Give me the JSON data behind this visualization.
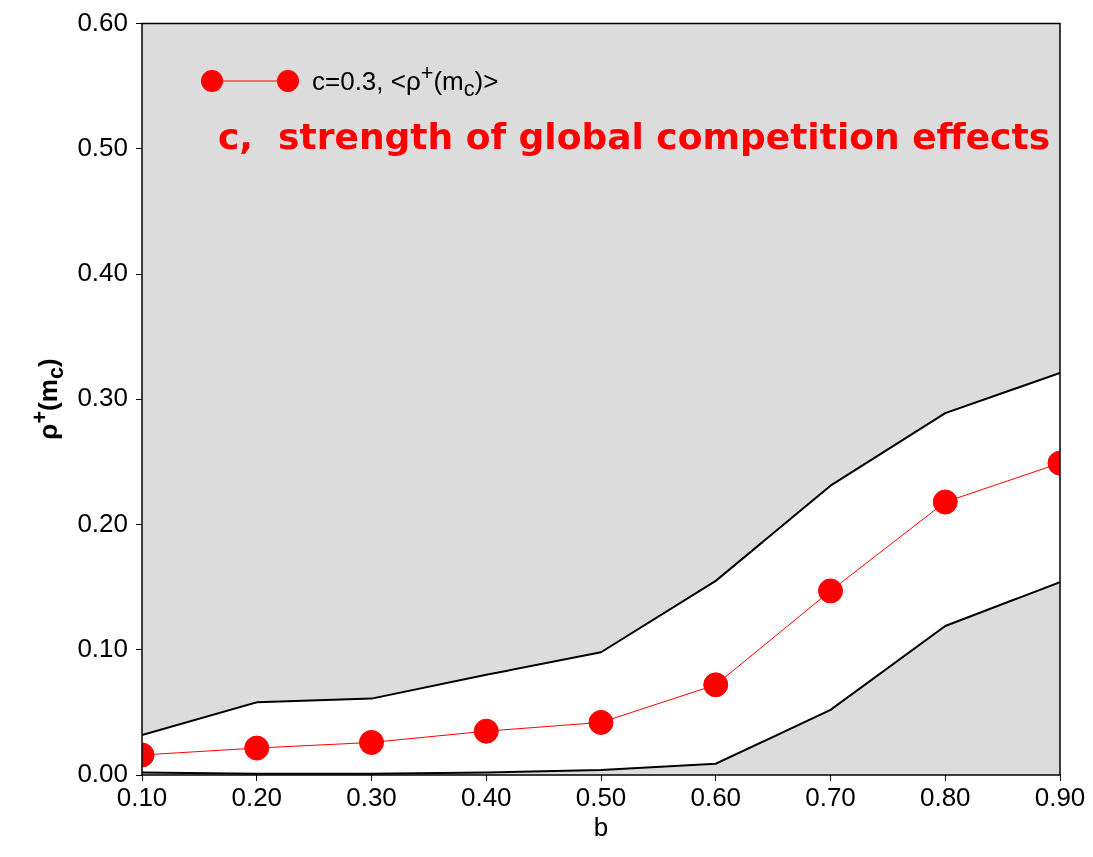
{
  "chart_data": {
    "type": "line",
    "xlabel": "b",
    "ylabel": "ρ$^{+}$(m$_{c}$)",
    "annotations": [
      "c,  strength of global competition effects"
    ],
    "x": [
      0.1,
      0.2,
      0.3,
      0.4,
      0.5,
      0.6,
      0.7,
      0.8,
      0.9
    ],
    "series": [
      {
        "type": "area",
        "color": "#ffffff",
        "values": [
          0.032,
          0.058,
          0.061,
          0.08,
          0.098,
          0.155,
          0.231,
          0.289,
          0.321
        ]
      },
      {
        "type": "area",
        "color": "#dcdcdc",
        "values": [
          0.002,
          0.001,
          0.001,
          0.002,
          0.004,
          0.009,
          0.052,
          0.119,
          0.154
        ]
      },
      {
        "name": "c=0.3, <ρ$^{+}$(m$_{c}$)>",
        "color": "#ff0000",
        "marker": "circle",
        "values": [
          0.016,
          0.0215,
          0.026,
          0.035,
          0.042,
          0.072,
          0.147,
          0.218,
          0.249
        ]
      }
    ],
    "xlim": [
      0.1,
      0.9
    ],
    "xticks": [
      {
        "value": 0.1,
        "label": "0.10"
      },
      {
        "value": 0.2,
        "label": "0.20"
      },
      {
        "value": 0.3,
        "label": "0.30"
      },
      {
        "value": 0.4,
        "label": "0.40"
      },
      {
        "value": 0.5,
        "label": "0.50"
      },
      {
        "value": 0.6,
        "label": "0.60"
      },
      {
        "value": 0.7,
        "label": "0.70"
      },
      {
        "value": 0.8,
        "label": "0.80"
      },
      {
        "value": 0.9,
        "label": "0.90"
      }
    ],
    "ylim": [
      0,
      0.6
    ],
    "yticks": [
      {
        "value": 0,
        "label": "0.00"
      },
      {
        "value": 0.1,
        "label": "0.10"
      },
      {
        "value": 0.2,
        "label": "0.20"
      },
      {
        "value": 0.3,
        "label": "0.30"
      },
      {
        "value": 0.4,
        "label": "0.40"
      },
      {
        "value": 0.5,
        "label": "0.50"
      },
      {
        "value": 0.6,
        "label": "0.60"
      }
    ],
    "grid": false,
    "legend": "top left",
    "marker": "none",
    "line_style": "solid"
  }
}
